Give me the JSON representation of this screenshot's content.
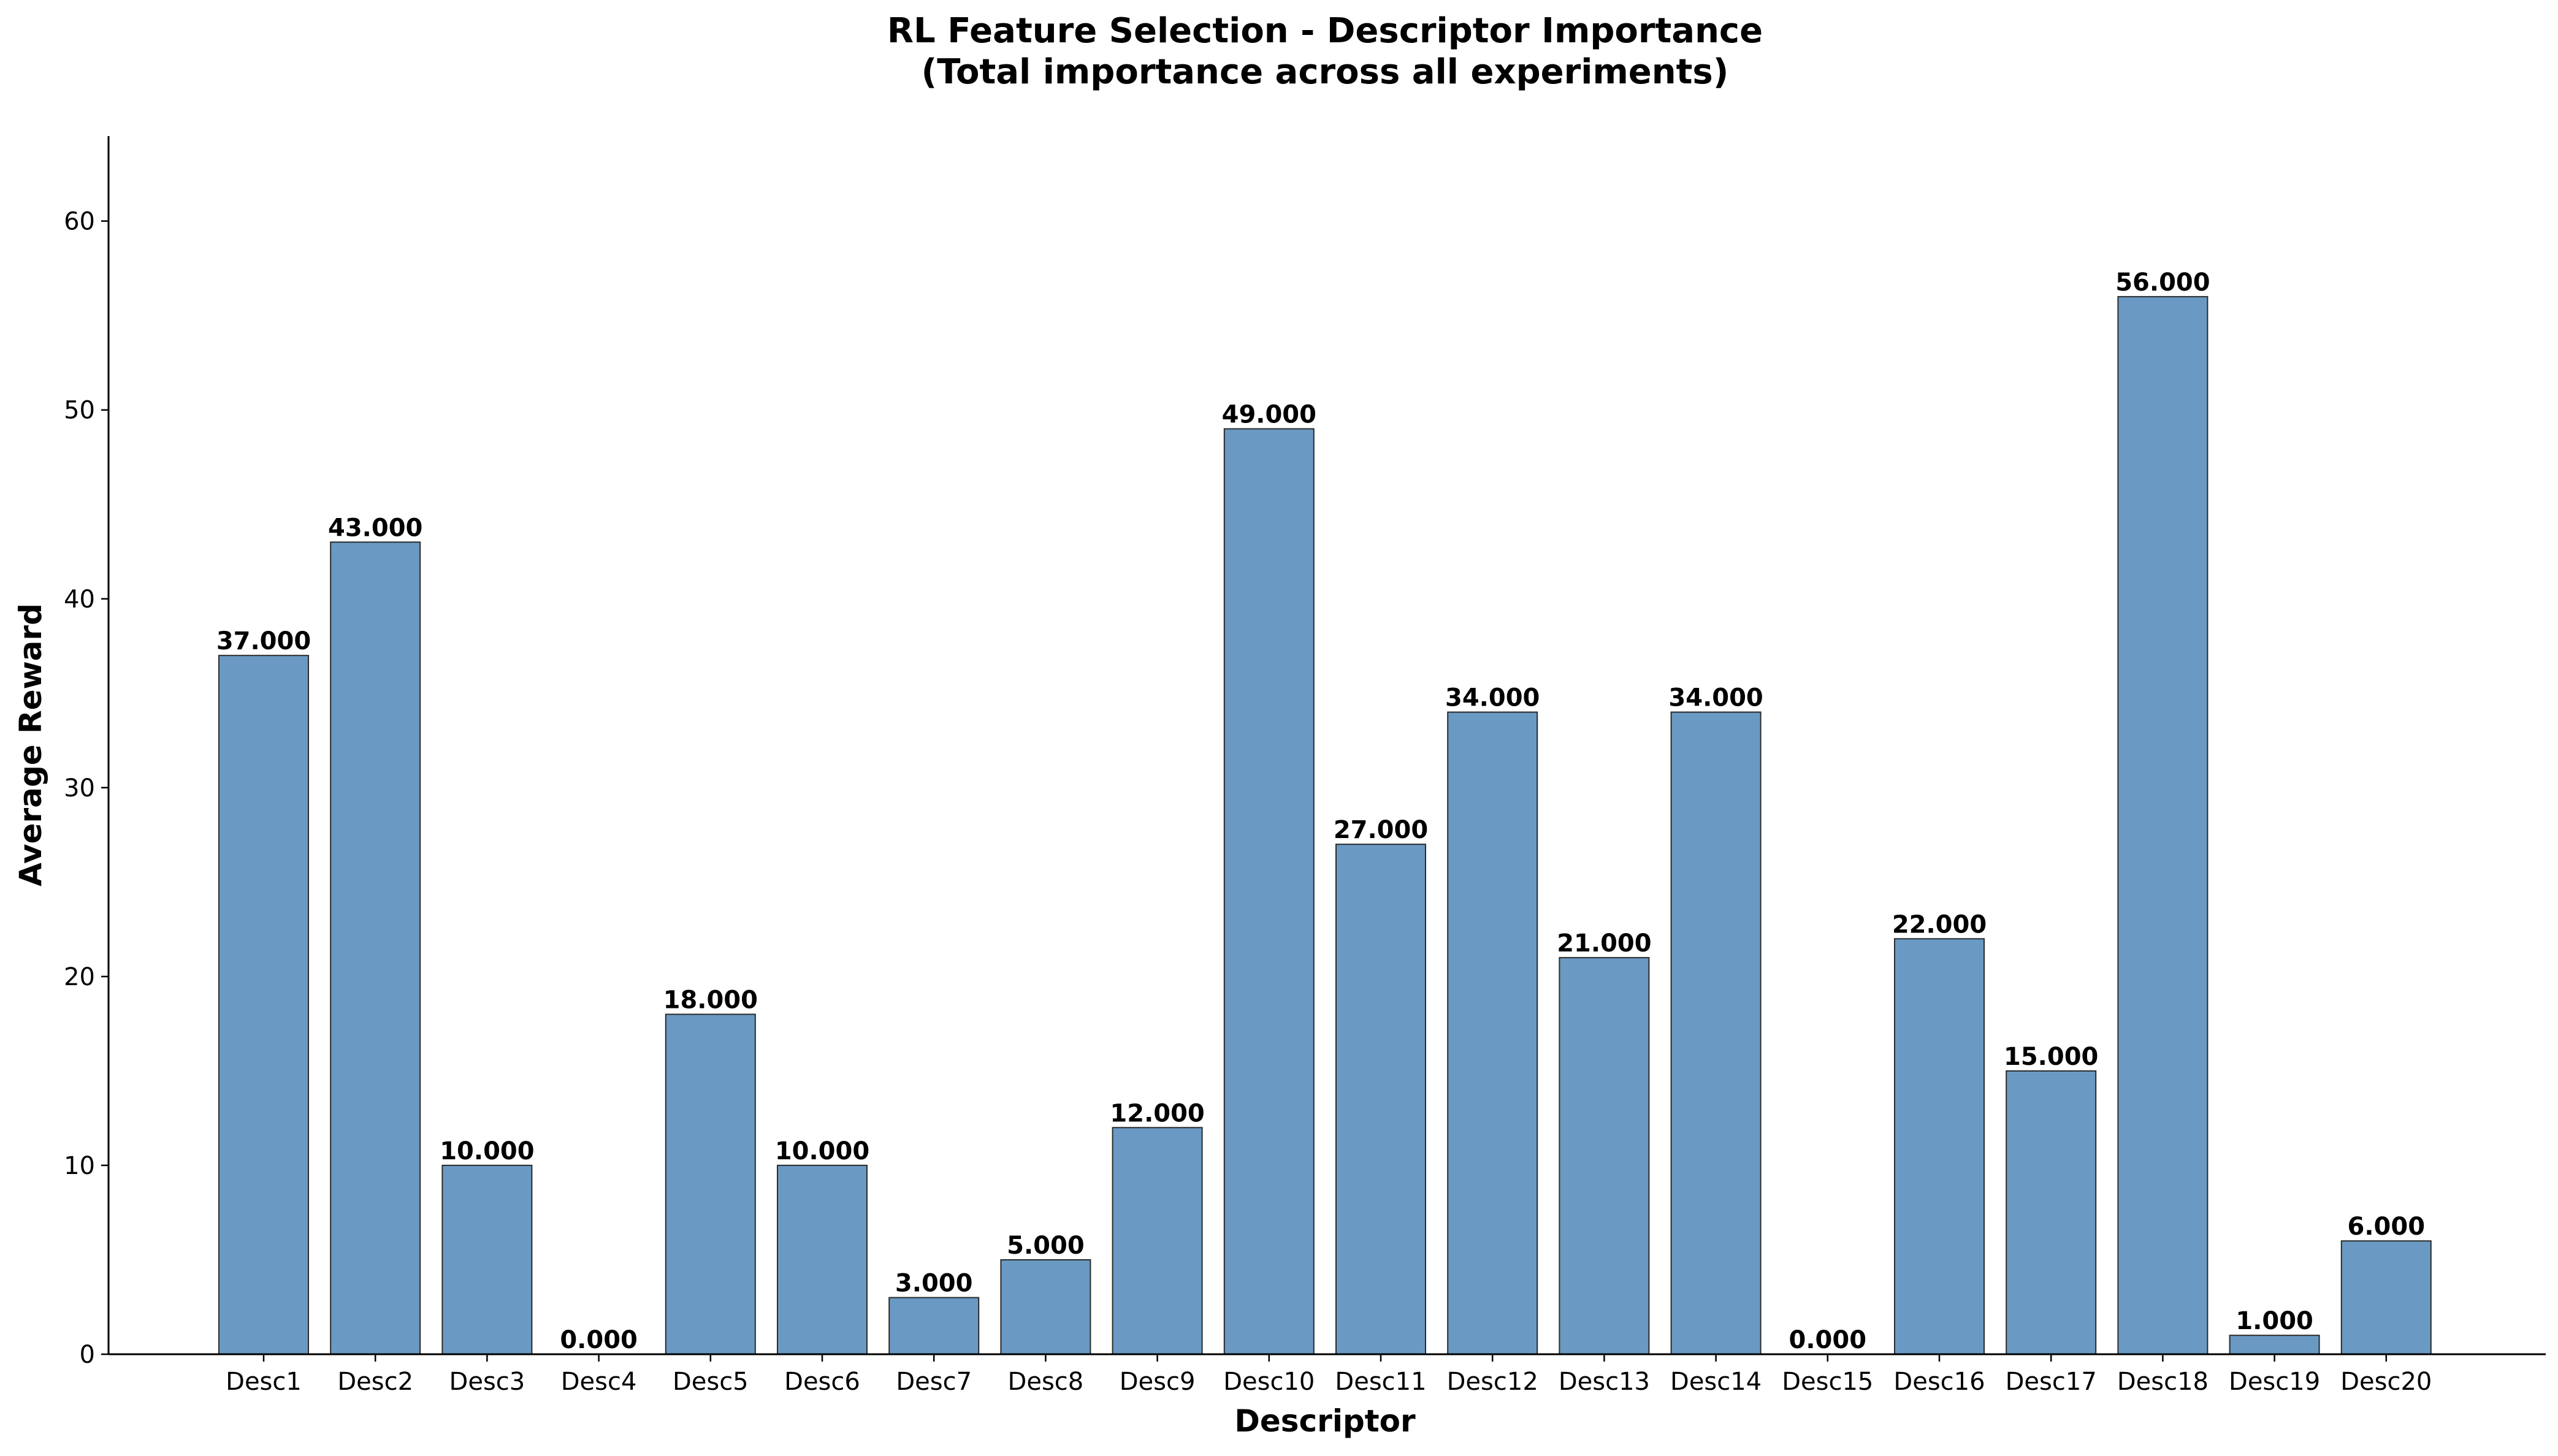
{
  "chart_data": {
    "type": "bar",
    "title_line1": "RL Feature Selection - Descriptor Importance",
    "title_line2": "(Total importance across all experiments)",
    "xlabel": "Descriptor",
    "ylabel": "Average Reward",
    "categories": [
      "Desc1",
      "Desc2",
      "Desc3",
      "Desc4",
      "Desc5",
      "Desc6",
      "Desc7",
      "Desc8",
      "Desc9",
      "Desc10",
      "Desc11",
      "Desc12",
      "Desc13",
      "Desc14",
      "Desc15",
      "Desc16",
      "Desc17",
      "Desc18",
      "Desc19",
      "Desc20"
    ],
    "values": [
      37,
      43,
      10,
      0,
      18,
      10,
      3,
      5,
      12,
      49,
      27,
      34,
      21,
      34,
      0,
      22,
      15,
      56,
      1,
      6
    ],
    "value_labels": [
      "37.000",
      "43.000",
      "10.000",
      "0.000",
      "18.000",
      "10.000",
      "3.000",
      "5.000",
      "12.000",
      "49.000",
      "27.000",
      "34.000",
      "21.000",
      "34.000",
      "0.000",
      "22.000",
      "15.000",
      "56.000",
      "1.000",
      "6.000"
    ],
    "ylim": [
      0,
      64.5
    ],
    "yticks": [
      0,
      10,
      20,
      30,
      40,
      50,
      60
    ],
    "ytick_labels": [
      "0",
      "10",
      "20",
      "30",
      "40",
      "50",
      "60"
    ],
    "bar_color": "#6a9ac4",
    "bar_edge_color": "#2b2b2b",
    "grid": false,
    "legend": "none"
  }
}
